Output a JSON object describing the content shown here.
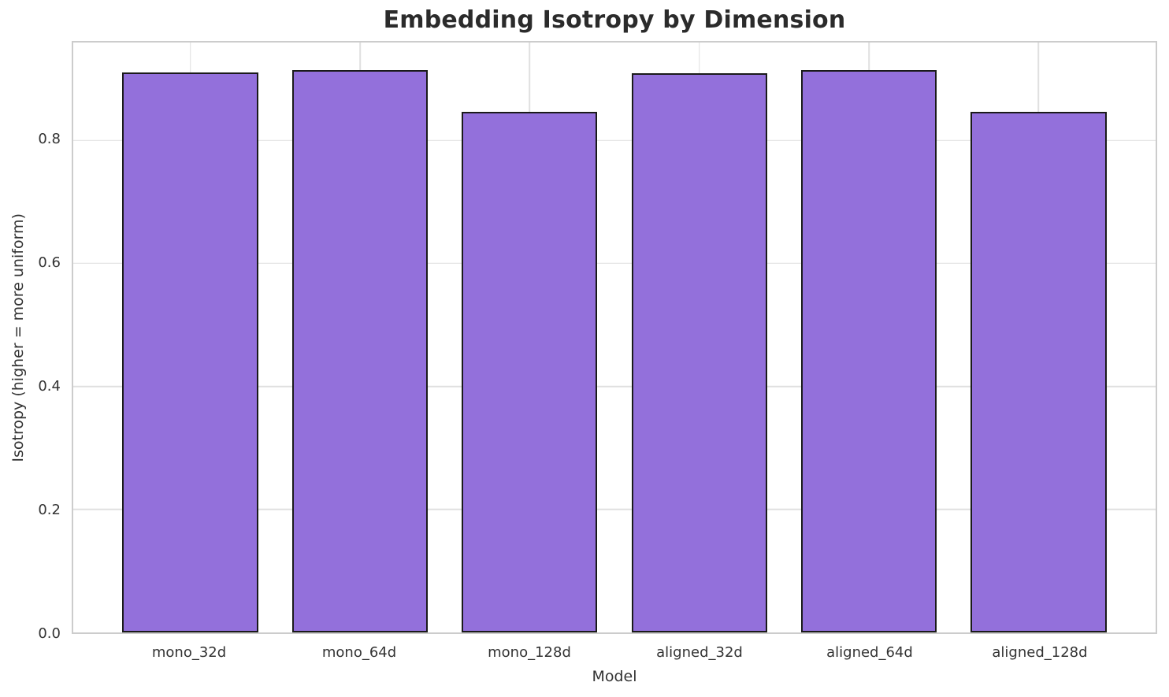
{
  "chart_data": {
    "type": "bar",
    "title": "Embedding Isotropy by Dimension",
    "xlabel": "Model",
    "ylabel": "Isotropy (higher = more uniform)",
    "categories": [
      "mono_32d",
      "mono_64d",
      "mono_128d",
      "aligned_32d",
      "aligned_64d",
      "aligned_128d"
    ],
    "values": [
      0.91,
      0.914,
      0.846,
      0.909,
      0.914,
      0.846
    ],
    "ylim": [
      0,
      0.959
    ],
    "xlim": [
      -0.69,
      5.69
    ],
    "yticks": [
      0.0,
      0.2,
      0.4,
      0.6,
      0.8
    ],
    "ytick_labels": [
      "0.0",
      "0.2",
      "0.4",
      "0.6",
      "0.8"
    ],
    "bar_width": 0.8,
    "grid": true,
    "legend": "none",
    "colors": {
      "bar_fill": "#9370DB",
      "bar_edge": "#1a1a1a",
      "grid": "#e0e0e0",
      "spine": "#cccccc",
      "tick_text": "#333333",
      "title_text": "#2b2b2b",
      "background": "#ffffff"
    }
  }
}
